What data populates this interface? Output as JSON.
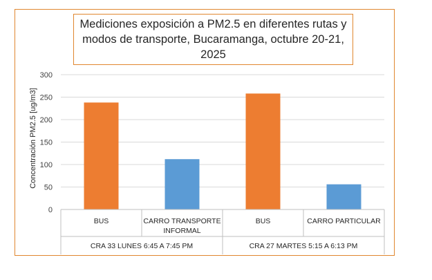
{
  "chart_data": {
    "type": "bar",
    "title": "Mediciones exposición a PM2.5 en diferentes rutas y modos de transporte, Bucaramanga, octubre 20-21, 2025",
    "title_lines": [
      "Mediciones exposición a PM2.5 en diferentes rutas y",
      "modos de transporte, Bucaramanga, octubre 20-21,",
      "2025"
    ],
    "ylabel": "Concentración PM2.5 [ug/m3]",
    "xlabel": "",
    "ylim": [
      0,
      300
    ],
    "yticks": [
      0,
      50,
      100,
      150,
      200,
      250,
      300
    ],
    "grid": true,
    "categories": [
      {
        "label_lines": [
          "BUS"
        ],
        "value": 238,
        "color": "#ed7d31"
      },
      {
        "label_lines": [
          "CARRO TRANSPORTE",
          "INFORMAL"
        ],
        "value": 112,
        "color": "#5b9bd5"
      },
      {
        "label_lines": [
          "BUS"
        ],
        "value": 258,
        "color": "#ed7d31"
      },
      {
        "label_lines": [
          "CARRO PARTICULAR"
        ],
        "value": 56,
        "color": "#5b9bd5"
      }
    ],
    "groups": [
      {
        "label": "CRA 33 LUNES 6:45 A 7:45 PM"
      },
      {
        "label": "CRA 27 MARTES 5:15 A 6:13 PM"
      }
    ]
  },
  "colors": {
    "frame": "#e0862e",
    "grid": "#d9d9d9",
    "axis": "#bfbfbf"
  }
}
